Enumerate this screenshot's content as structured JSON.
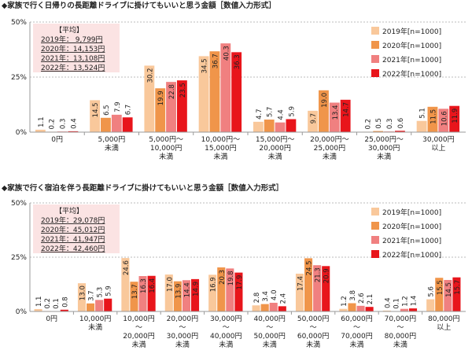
{
  "chart_data": [
    {
      "type": "bar",
      "title": "◆家族で行く日帰りの長距離ドライブに掛けてもいいと思う金額［数値入力形式］",
      "categories": [
        "0円",
        "5,000円\n未満",
        "5,000円～\n10,000円\n未満",
        "10,000円～\n15,000円\n未満",
        "15,000円～\n20,000円\n未満",
        "20,000円～\n25,000円\n未満",
        "25,000円～\n30,000円\n未満",
        "30,000円\n以上"
      ],
      "series": [
        {
          "name": "2019年[n=1000]",
          "color": "#f9c89b",
          "values": [
            1.1,
            14.5,
            30.2,
            34.5,
            4.7,
            9.7,
            0.2,
            5.1
          ],
          "value_labels": [
            "1.1",
            "14.5",
            "30.2",
            "34.5",
            "4.7",
            "9.7",
            "0.2",
            "5.1"
          ]
        },
        {
          "name": "2020年[n=1000]",
          "color": "#f0954a",
          "values": [
            0.2,
            6.5,
            19.9,
            36.7,
            5.7,
            19.0,
            0.5,
            11.5
          ],
          "value_labels": [
            "0.2",
            "6.5",
            "19.9",
            "36.7",
            "5.7",
            "19.0",
            "0.5",
            "11.5"
          ]
        },
        {
          "name": "2021年[n=1000]",
          "color": "#f08080",
          "values": [
            0.3,
            7.9,
            22.8,
            40.3,
            4.4,
            13.4,
            0.3,
            10.6
          ],
          "value_labels": [
            "0.3",
            "7.9",
            "22.8",
            "40.3",
            "4.4",
            "13.4",
            "0.3",
            "10.6"
          ]
        },
        {
          "name": "2022年[n=1000]",
          "color": "#e8151b",
          "values": [
            0.4,
            6.7,
            23.5,
            36.3,
            5.9,
            14.7,
            0.6,
            11.9
          ],
          "value_labels": [
            "0.4",
            "6.7",
            "23.5",
            "36.3",
            "5.9",
            "14.7",
            "0.6",
            "11.9"
          ]
        }
      ],
      "ylim": [
        0,
        50
      ],
      "yticks": [
        {
          "value": 0,
          "label": "0%"
        },
        {
          "value": 25,
          "label": "25%"
        },
        {
          "value": 50,
          "label": "50%"
        }
      ],
      "grid": true,
      "average": {
        "title": "【平均】",
        "lines": [
          "2019年：  9,799円",
          "2020年：14,153円",
          "2021年：13,108円",
          "2022年：13,524円"
        ]
      }
    },
    {
      "type": "bar",
      "title": "◆家族で行く宿泊を伴う長距離ドライブに掛けてもいいと思う金額［数値入力形式］",
      "categories": [
        "0円",
        "10,000円\n未満",
        "10,000円\n～\n20,000円\n未満",
        "20,000円\n～\n30,000円\n未満",
        "30,000円\n～\n40,000円\n未満",
        "40,000円\n～\n50,000円\n未満",
        "50,000円\n～\n60,000円\n未満",
        "60,000円\n～\n70,000円\n未満",
        "70,000円\n～\n80,000円\n未満",
        "80,000円\n以上"
      ],
      "series": [
        {
          "name": "2019年[n=1000]",
          "color": "#f9c89b",
          "values": [
            1.1,
            13.0,
            24.6,
            17.0,
            16.9,
            2.8,
            17.4,
            1.2,
            0.4,
            5.6
          ],
          "value_labels": [
            "1.1",
            "13.0",
            "24.6",
            "17.0",
            "16.9",
            "2.8",
            "17.4",
            "1.2",
            "0.4",
            "5.6"
          ]
        },
        {
          "name": "2020年[n=1000]",
          "color": "#f0954a",
          "values": [
            0.2,
            3.7,
            13.7,
            13.9,
            20.3,
            3.4,
            24.5,
            3.8,
            0.1,
            15.5
          ],
          "value_labels": [
            "0.2",
            "3.7",
            "13.7",
            "13.9",
            "20.3",
            "3.4",
            "24.5",
            "3.8",
            "0.1",
            "15.5"
          ]
        },
        {
          "name": "2021年[n=1000]",
          "color": "#f08080",
          "values": [
            0.1,
            5.3,
            16.3,
            14.4,
            19.8,
            4.0,
            21.3,
            2.6,
            1.2,
            14.5
          ],
          "value_labels": [
            "0.1",
            "5.3",
            "16.3",
            "14.4",
            "19.8",
            "4.0",
            "21.3",
            "2.6",
            "1.2",
            "14.5"
          ]
        },
        {
          "name": "2022年[n=1000]",
          "color": "#e8151b",
          "values": [
            0.8,
            5.9,
            16.4,
            14.9,
            17.9,
            2.4,
            20.9,
            2.1,
            1.4,
            15.7
          ],
          "value_labels": [
            "0.8",
            "5.9",
            "16.4",
            "14.9",
            "17.9",
            "2.4",
            "20.9",
            "2.1",
            "1.4",
            "15.7"
          ]
        }
      ],
      "ylim": [
        0,
        50
      ],
      "yticks": [
        {
          "value": 0,
          "label": "0%"
        },
        {
          "value": 25,
          "label": "25%"
        },
        {
          "value": 50,
          "label": "50%"
        }
      ],
      "grid": true,
      "average": {
        "title": "【平均】",
        "lines": [
          "2019年：29,078円",
          "2020年：45,012円",
          "2021年：41,947円",
          "2022年：42,460円"
        ]
      }
    }
  ]
}
